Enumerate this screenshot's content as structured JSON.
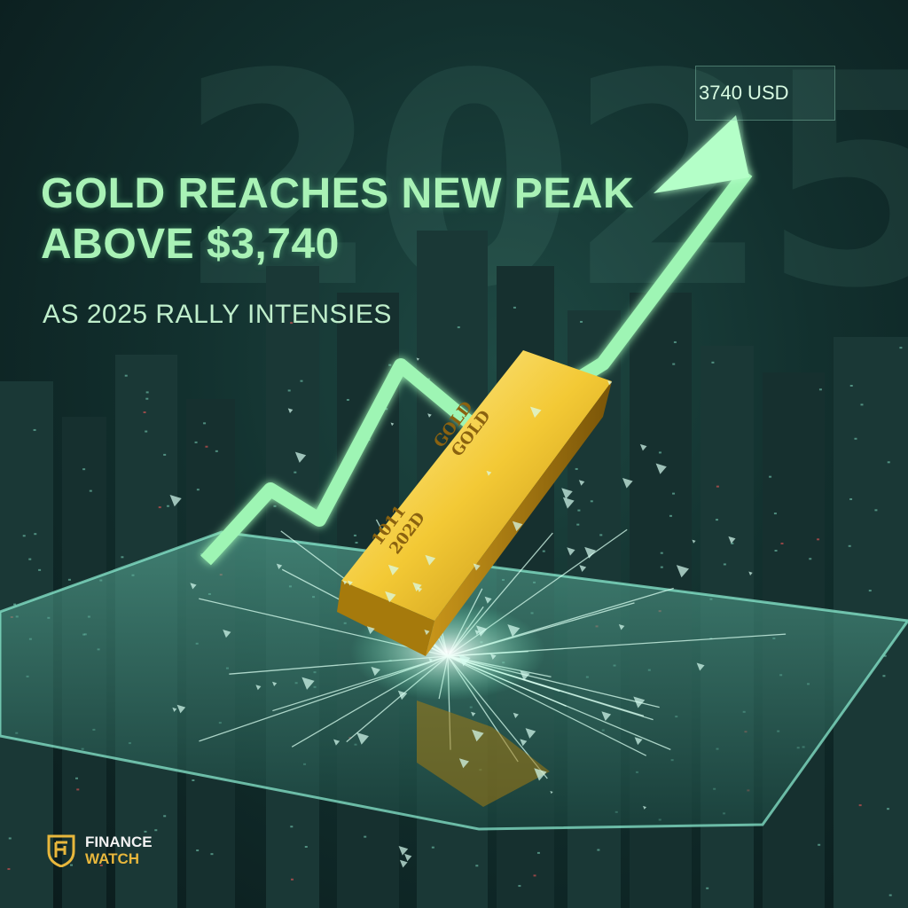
{
  "background_year": "2025",
  "headline": {
    "line1": "GOLD REACHES NEW PEAK",
    "line2": "ABOVE $3,740"
  },
  "subheadline": "AS 2025 RALLY INTENSIES",
  "price_tag": "3740 USD",
  "gold_bar": {
    "inscription_top": [
      "GOLD",
      "GOLD"
    ],
    "inscription_bottom": [
      "1011",
      "202D"
    ]
  },
  "brand": {
    "line1": "FINANCE",
    "line2": "WATCH"
  },
  "colors": {
    "accent": "#9ef5b4",
    "gold": "#e0b52a",
    "background": "#0e2424"
  }
}
